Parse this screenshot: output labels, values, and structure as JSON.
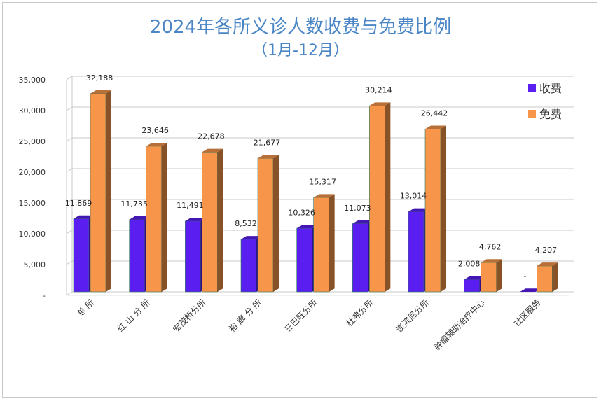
{
  "chart_data": {
    "type": "bar",
    "title": "2024年各所义诊人数收费与免费比例",
    "subtitle": "（1月-12月）",
    "categories": [
      "总 所",
      "红 山 分 所",
      "宏茂桥分所",
      "裕 廊 分 所",
      "三巴旺分所",
      "杜弗分所",
      "淡滨尼分所",
      "肿瘤辅助治疗中心",
      "社区服务"
    ],
    "series": [
      {
        "name": "收费",
        "color": "#5a1ff0",
        "values": [
          11869,
          11735,
          11491,
          8532,
          10326,
          11073,
          13014,
          2008,
          0
        ],
        "labels": [
          "11,869",
          "11,735",
          "11,491",
          "8,532",
          "10,326",
          "11,073",
          "13,014",
          "2,008",
          "-"
        ]
      },
      {
        "name": "免费",
        "color": "#f7954a",
        "values": [
          32188,
          23646,
          22678,
          21677,
          15317,
          30214,
          26442,
          4762,
          4207
        ],
        "labels": [
          "32,188",
          "23,646",
          "22,678",
          "21,677",
          "15,317",
          "30,214",
          "26,442",
          "4,762",
          "4,207"
        ]
      }
    ],
    "ylim": [
      0,
      35000
    ],
    "yticks": [
      0,
      5000,
      10000,
      15000,
      20000,
      25000,
      30000,
      35000
    ],
    "ytick_labels": [
      "-",
      "5,000",
      "10,000",
      "15,000",
      "20,000",
      "25,000",
      "30,000",
      "35,000"
    ],
    "grid": true,
    "legend": "top-right"
  }
}
